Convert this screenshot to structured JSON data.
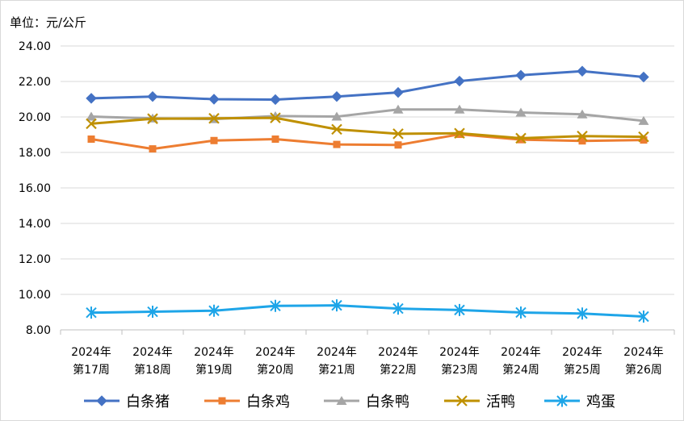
{
  "chart_data": {
    "type": "line",
    "unit_label": "单位：元/公斤",
    "ylim": [
      8,
      24
    ],
    "y_ticks": [
      "8.00",
      "10.00",
      "12.00",
      "14.00",
      "16.00",
      "18.00",
      "20.00",
      "22.00",
      "24.00"
    ],
    "grid": "horizontal",
    "legend_position": "bottom",
    "categories": [
      {
        "year": "2024年",
        "week": "第17周"
      },
      {
        "year": "2024年",
        "week": "第18周"
      },
      {
        "year": "2024年",
        "week": "第19周"
      },
      {
        "year": "2024年",
        "week": "第20周"
      },
      {
        "year": "2024年",
        "week": "第21周"
      },
      {
        "year": "2024年",
        "week": "第22周"
      },
      {
        "year": "2024年",
        "week": "第23周"
      },
      {
        "year": "2024年",
        "week": "第24周"
      },
      {
        "year": "2024年",
        "week": "第25周"
      },
      {
        "year": "2024年",
        "week": "第26周"
      }
    ],
    "series": [
      {
        "name": "白条猪",
        "color": "#4472C4",
        "marker": "diamond",
        "values": [
          21.05,
          21.15,
          21.0,
          20.98,
          21.15,
          21.38,
          22.02,
          22.35,
          22.58,
          22.25
        ]
      },
      {
        "name": "白条鸡",
        "color": "#ED7D31",
        "marker": "square",
        "values": [
          18.75,
          18.2,
          18.67,
          18.75,
          18.45,
          18.42,
          19.02,
          18.72,
          18.65,
          18.7
        ]
      },
      {
        "name": "白条鸭",
        "color": "#A5A5A5",
        "marker": "triangle",
        "values": [
          20.02,
          19.92,
          19.88,
          20.05,
          20.02,
          20.42,
          20.42,
          20.25,
          20.15,
          19.78
        ]
      },
      {
        "name": "活鸭",
        "color": "#BF9000",
        "marker": "x",
        "values": [
          19.62,
          19.9,
          19.92,
          19.95,
          19.3,
          19.05,
          19.08,
          18.8,
          18.92,
          18.88
        ]
      },
      {
        "name": "鸡蛋",
        "color": "#1EA5E8",
        "marker": "asterisk",
        "values": [
          8.97,
          9.02,
          9.08,
          9.35,
          9.38,
          9.2,
          9.12,
          8.98,
          8.92,
          8.75
        ]
      }
    ]
  }
}
